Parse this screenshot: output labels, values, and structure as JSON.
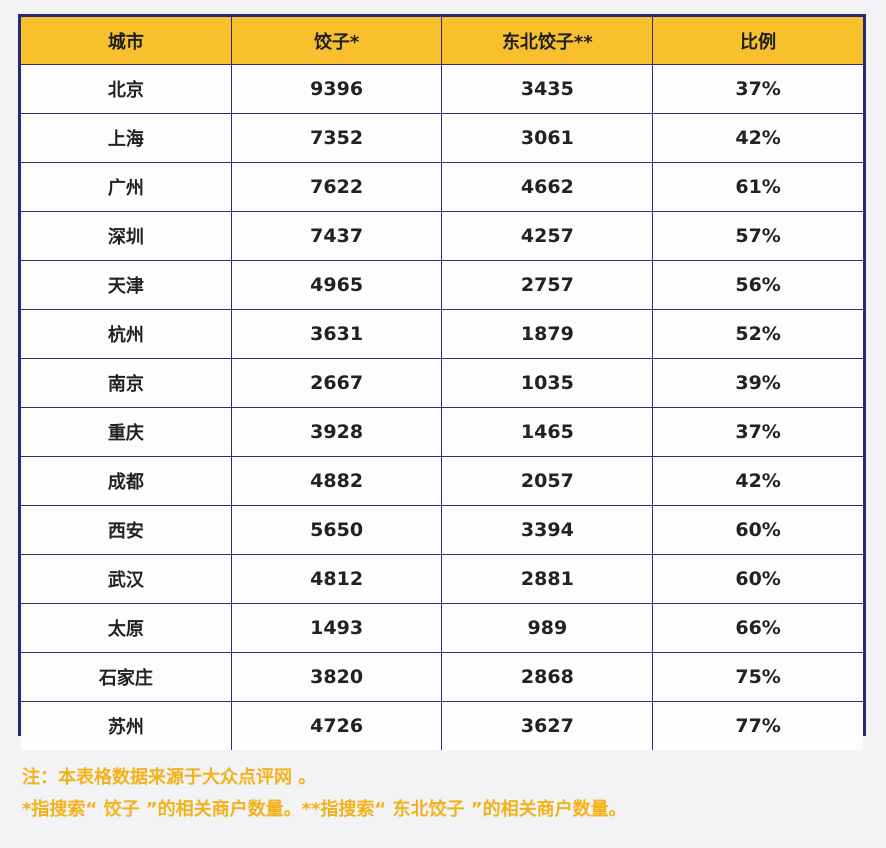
{
  "chart_data": {
    "type": "table",
    "columns": [
      "城市",
      "饺子*",
      "东北饺子**",
      "比例"
    ],
    "rows": [
      [
        "北京",
        "9396",
        "3435",
        "37%"
      ],
      [
        "上海",
        "7352",
        "3061",
        "42%"
      ],
      [
        "广州",
        "7622",
        "4662",
        "61%"
      ],
      [
        "深圳",
        "7437",
        "4257",
        "57%"
      ],
      [
        "天津",
        "4965",
        "2757",
        "56%"
      ],
      [
        "杭州",
        "3631",
        "1879",
        "52%"
      ],
      [
        "南京",
        "2667",
        "1035",
        "39%"
      ],
      [
        "重庆",
        "3928",
        "1465",
        "37%"
      ],
      [
        "成都",
        "4882",
        "2057",
        "42%"
      ],
      [
        "西安",
        "5650",
        "3394",
        "60%"
      ],
      [
        "武汉",
        "4812",
        "2881",
        "60%"
      ],
      [
        "太原",
        "1493",
        "989",
        "66%"
      ],
      [
        "石家庄",
        "3820",
        "2868",
        "75%"
      ],
      [
        "苏州",
        "4726",
        "3627",
        "77%"
      ]
    ],
    "colors": {
      "header_background": "#f9c02e",
      "border": "#262a76",
      "note_text": "#f2b21b"
    }
  },
  "notes": [
    "注：本表格数据来源于大众点评网 。",
    "*指搜索“ 饺子 ”的相关商户数量。**指搜索“ 东北饺子 ”的相关商户数量。"
  ]
}
